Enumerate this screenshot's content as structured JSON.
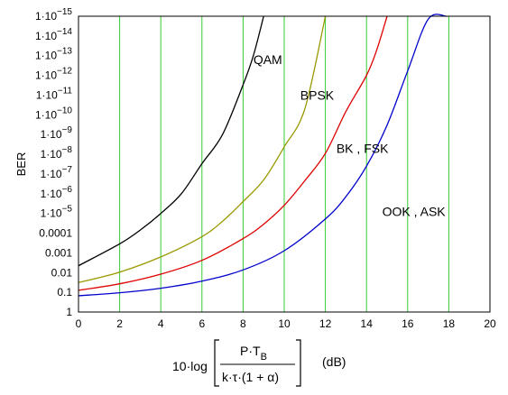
{
  "chart_data": {
    "type": "line",
    "ylabel": "BER",
    "xlabel_formula": {
      "prefix": "10·log",
      "numerator": "P·T",
      "numerator_subscript": "B",
      "denominator": "k·τ·(1 + α)",
      "unit": "(dB)"
    },
    "x_ticks": [
      "0",
      "2",
      "4",
      "6",
      "8",
      "10",
      "12",
      "14",
      "16",
      "18",
      "20"
    ],
    "xlim": [
      0,
      20
    ],
    "ylim_log10": [
      -15,
      0
    ],
    "y_ticks": [
      {
        "exp": 0,
        "plain": "1"
      },
      {
        "exp": -1,
        "plain": "0.1"
      },
      {
        "exp": -2,
        "plain": "0.01"
      },
      {
        "exp": -3,
        "plain": "0.001"
      },
      {
        "exp": -4,
        "plain": "0.0001"
      },
      {
        "exp": -5,
        "base": "1·10",
        "sup": "−5"
      },
      {
        "exp": -6,
        "base": "1·10",
        "sup": "−6"
      },
      {
        "exp": -7,
        "base": "1·10",
        "sup": "−7"
      },
      {
        "exp": -8,
        "base": "1·10",
        "sup": "−8"
      },
      {
        "exp": -9,
        "base": "1·10",
        "sup": "−9"
      },
      {
        "exp": -10,
        "base": "1·10",
        "sup": "−10"
      },
      {
        "exp": -11,
        "base": "1·10",
        "sup": "−11"
      },
      {
        "exp": -12,
        "base": "1·10",
        "sup": "−12"
      },
      {
        "exp": -13,
        "base": "1·10",
        "sup": "−13"
      },
      {
        "exp": -14,
        "base": "1·10",
        "sup": "−14"
      },
      {
        "exp": -15,
        "base": "1·10",
        "sup": "−15"
      }
    ],
    "grid": {
      "vertical_color": "#33cc33",
      "horizontal_color": "#000000"
    },
    "series": [
      {
        "name": "OOK , ASK",
        "color": "#0000cc",
        "points": [
          [
            0,
            0.15
          ],
          [
            2,
            0.105
          ],
          [
            4,
            0.062
          ],
          [
            6,
            0.027
          ],
          [
            8,
            0.0073
          ],
          [
            10,
            0.00078
          ],
          [
            12,
            1.9e-05
          ],
          [
            13,
            1.4e-06
          ],
          [
            14,
            4e-08
          ],
          [
            15,
            3.3e-10
          ],
          [
            16,
            6e-13
          ],
          [
            17,
            1.4e-15
          ],
          [
            17.9,
            1e-15
          ]
        ]
      },
      {
        "name": "BK , FSK",
        "color": "#dd0000",
        "points": [
          [
            0,
            0.079
          ],
          [
            2,
            0.037
          ],
          [
            4,
            0.012
          ],
          [
            6,
            0.0024
          ],
          [
            8,
            0.00019
          ],
          [
            9,
            3.5e-05
          ],
          [
            10,
            3.9e-06
          ],
          [
            11,
            2.2e-07
          ],
          [
            12,
            9e-09
          ],
          [
            13,
            6.7e-11
          ],
          [
            14,
            1e-12
          ],
          [
            14.5,
            5e-14
          ],
          [
            15,
            1e-15
          ]
        ]
      },
      {
        "name": "BPSK",
        "color": "#999900",
        "points": [
          [
            0,
            0.032
          ],
          [
            2,
            0.0095
          ],
          [
            4,
            0.0016
          ],
          [
            6,
            0.00015
          ],
          [
            7,
            2.5e-05
          ],
          [
            8,
            2.5e-06
          ],
          [
            9,
            2e-07
          ],
          [
            10,
            4.2e-09
          ],
          [
            11,
            5e-11
          ],
          [
            12,
            1e-15
          ]
        ]
      },
      {
        "name": "QAM",
        "color": "#000000",
        "points": [
          [
            0,
            0.0045
          ],
          [
            2,
            0.00035
          ],
          [
            3,
            7e-05
          ],
          [
            4,
            1e-05
          ],
          [
            5,
            1e-06
          ],
          [
            6,
            3e-08
          ],
          [
            7,
            1e-09
          ],
          [
            8,
            3e-12
          ],
          [
            8.5,
            1e-13
          ],
          [
            9,
            1e-15
          ]
        ]
      }
    ],
    "labels": [
      {
        "text": "OOK , ASK",
        "x": 16.3,
        "exp": -5.1
      },
      {
        "text": "BK , FSK",
        "x": 13.8,
        "exp": -8.3
      },
      {
        "text": "BPSK",
        "x": 11.6,
        "exp": -11.0
      },
      {
        "text": "QAM",
        "x": 9.2,
        "exp": -12.8
      }
    ]
  }
}
